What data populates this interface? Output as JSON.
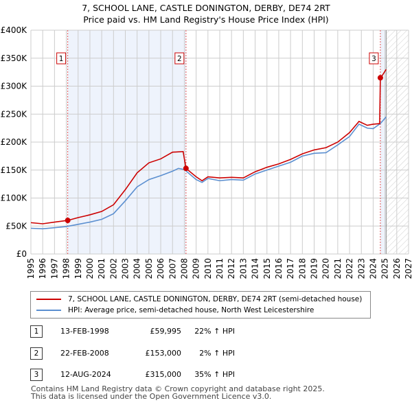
{
  "chart_data": {
    "type": "line",
    "title": "7, SCHOOL LANE, CASTLE DONINGTON, DERBY, DE74 2RT",
    "subtitle": "Price paid vs. HM Land Registry's House Price Index (HPI)",
    "xlim": [
      1995,
      2027
    ],
    "ylim": [
      0,
      400000
    ],
    "y_ticks": [
      {
        "v": 0,
        "l": "£0"
      },
      {
        "v": 50000,
        "l": "£50K"
      },
      {
        "v": 100000,
        "l": "£100K"
      },
      {
        "v": 150000,
        "l": "£150K"
      },
      {
        "v": 200000,
        "l": "£200K"
      },
      {
        "v": 250000,
        "l": "£250K"
      },
      {
        "v": 300000,
        "l": "£300K"
      },
      {
        "v": 350000,
        "l": "£350K"
      },
      {
        "v": 400000,
        "l": "£400K"
      }
    ],
    "x_ticks": [
      "1995",
      "1996",
      "1997",
      "1998",
      "1999",
      "2000",
      "2001",
      "2002",
      "2003",
      "2004",
      "2005",
      "2006",
      "2007",
      "2008",
      "2009",
      "2010",
      "2011",
      "2012",
      "2013",
      "2014",
      "2015",
      "2016",
      "2017",
      "2018",
      "2019",
      "2020",
      "2021",
      "2022",
      "2023",
      "2024",
      "2025",
      "2026",
      "2027"
    ],
    "series": [
      {
        "name": "7, SCHOOL LANE, CASTLE DONINGTON, DERBY, DE74 2RT (semi-detached house)",
        "color": "#cc0000",
        "x": [
          1995,
          1996,
          1997,
          1998.12,
          1999,
          2000,
          2001,
          2002,
          2003,
          2004,
          2005,
          2006,
          2007,
          2007.9,
          2008.14,
          2009,
          2009.5,
          2010,
          2011,
          2012,
          2013,
          2014,
          2015,
          2016,
          2017,
          2018,
          2019,
          2020,
          2021,
          2022,
          2022.8,
          2023.5,
          2024,
          2024.55,
          2024.61,
          2024.8,
          2025.1
        ],
        "y": [
          56000,
          54000,
          57000,
          59995,
          65000,
          70000,
          76000,
          88000,
          115000,
          145000,
          163000,
          170000,
          182000,
          183000,
          153000,
          138000,
          131000,
          138000,
          136000,
          137000,
          136000,
          147000,
          155000,
          161000,
          169000,
          179000,
          186000,
          190000,
          200000,
          217000,
          237000,
          230000,
          232000,
          233000,
          315000,
          320000,
          330000
        ]
      },
      {
        "name": "HPI: Average price, semi-detached house, North West Leicestershire",
        "color": "#5b8fd0",
        "x": [
          1995,
          1996,
          1997,
          1998,
          1999,
          2000,
          2001,
          2002,
          2003,
          2004,
          2005,
          2006,
          2007,
          2007.5,
          2008,
          2009,
          2009.5,
          2010,
          2011,
          2012,
          2013,
          2014,
          2015,
          2016,
          2017,
          2018,
          2019,
          2020,
          2021,
          2022,
          2022.8,
          2023.5,
          2024,
          2024.6,
          2025.1
        ],
        "y": [
          46000,
          45000,
          47000,
          49000,
          53000,
          57000,
          62000,
          72000,
          95000,
          120000,
          133000,
          140000,
          148000,
          153000,
          151000,
          133000,
          128000,
          135000,
          131000,
          133000,
          132000,
          143000,
          150000,
          157000,
          164000,
          175000,
          180000,
          181000,
          195000,
          210000,
          232000,
          225000,
          224000,
          233000,
          245000
        ]
      }
    ],
    "sales": [
      {
        "n": "1",
        "x": 1998.12,
        "y": 59995
      },
      {
        "n": "2",
        "x": 2008.14,
        "y": 153000
      },
      {
        "n": "3",
        "x": 2024.61,
        "y": 315000
      }
    ],
    "shaded_range": [
      1998.12,
      2008.14
    ],
    "forecast_from": 2025.1
  },
  "legend": [
    "7, SCHOOL LANE, CASTLE DONINGTON, DERBY, DE74 2RT (semi-detached house)",
    "HPI: Average price, semi-detached house, North West Leicestershire"
  ],
  "transactions": [
    {
      "n": "1",
      "date": "13-FEB-1998",
      "price": "£59,995",
      "hpi": "22% ↑ HPI"
    },
    {
      "n": "2",
      "date": "22-FEB-2008",
      "price": "£153,000",
      "hpi": "2% ↑ HPI"
    },
    {
      "n": "3",
      "date": "12-AUG-2024",
      "price": "£315,000",
      "hpi": "35% ↑ HPI"
    }
  ],
  "footer": [
    "Contains HM Land Registry data © Crown copyright and database right 2025.",
    "This data is licensed under the Open Government Licence v3.0."
  ]
}
